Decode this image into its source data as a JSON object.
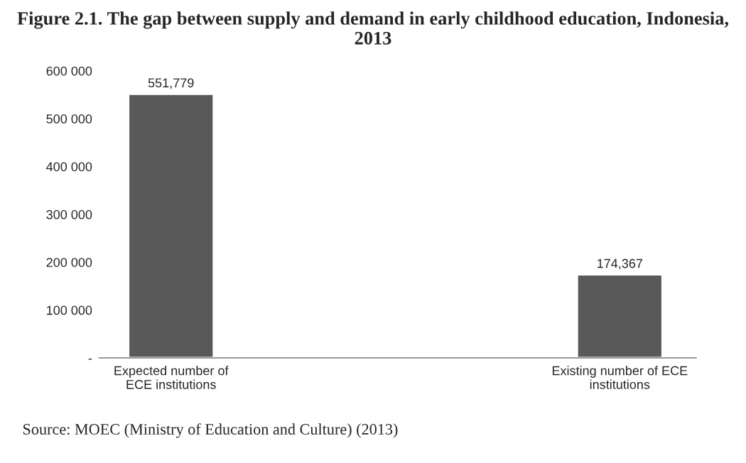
{
  "chart_data": {
    "type": "bar",
    "title": "Figure 2.1. The gap between supply and demand in early childhood education, Indonesia, 2013",
    "categories": [
      "Expected number of\nECE institutions",
      "Existing number of ECE\ninstitutions"
    ],
    "values": [
      551779,
      174367
    ],
    "color": "#595959",
    "value_labels": [
      "551,779",
      "174,367"
    ],
    "ylim": [
      0,
      600000
    ],
    "yticks": [
      {
        "value": 0,
        "label": "-"
      },
      {
        "value": 100000,
        "label": "100 000"
      },
      {
        "value": 200000,
        "label": "200 000"
      },
      {
        "value": 300000,
        "label": "300 000"
      },
      {
        "value": 400000,
        "label": "400 000"
      },
      {
        "value": 500000,
        "label": "500 000"
      },
      {
        "value": 600000,
        "label": "600 000"
      }
    ],
    "grid": false,
    "annotations": [
      "Source: MOEC (Ministry of Education and Culture) (2013)"
    ]
  }
}
